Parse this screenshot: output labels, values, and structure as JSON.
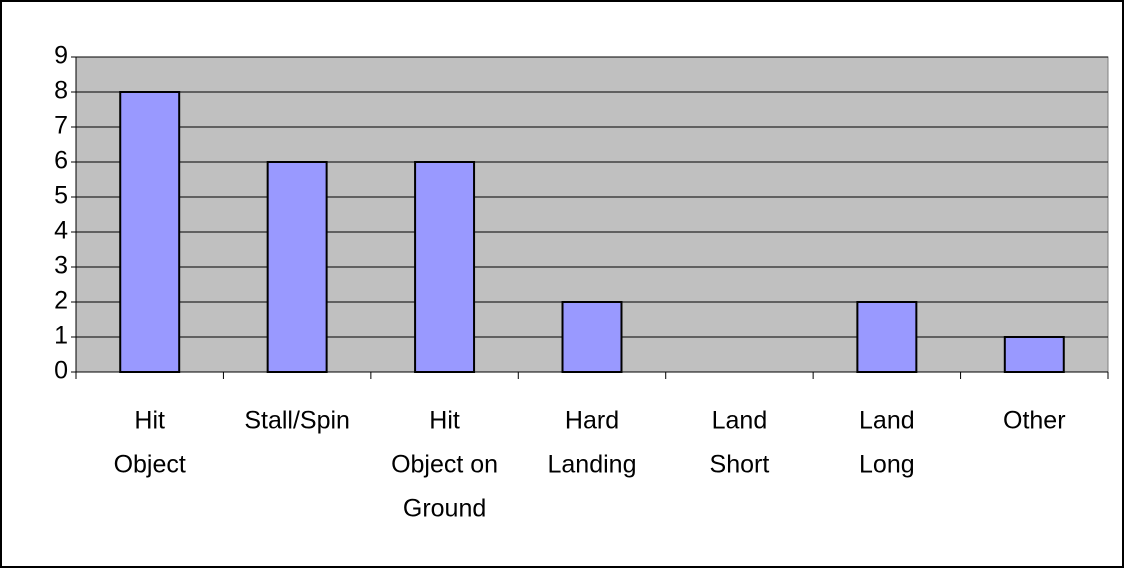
{
  "chart_data": {
    "type": "bar",
    "categories": [
      [
        "Hit",
        "Object"
      ],
      [
        "Stall/Spin"
      ],
      [
        "Hit",
        "Object on",
        "Ground"
      ],
      [
        "Hard",
        "Landing"
      ],
      [
        "Land",
        "Short"
      ],
      [
        "Land",
        "Long"
      ],
      [
        "Other"
      ]
    ],
    "values": [
      8,
      6,
      6,
      2,
      0,
      2,
      1
    ],
    "color": "#9999ff",
    "ylim": [
      0,
      9
    ],
    "yticks": [
      0,
      1,
      2,
      3,
      4,
      5,
      6,
      7,
      8,
      9
    ],
    "grid": true
  }
}
